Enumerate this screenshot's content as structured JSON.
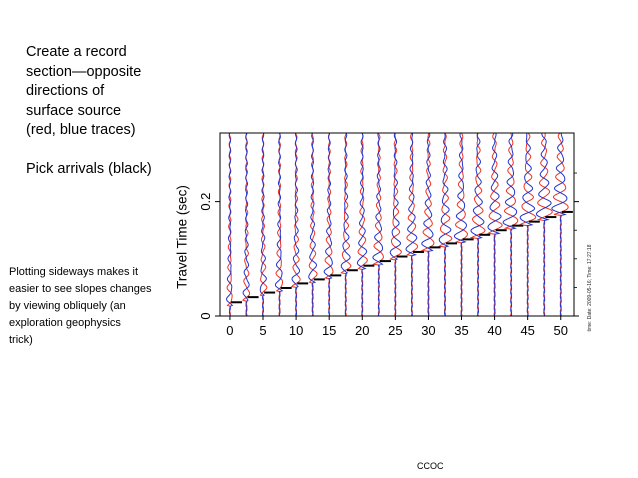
{
  "slide": {
    "title": "Create a record\nsection—opposite\ndirections of\nsurface source\n(red, blue traces)\n\nPick arrivals (black)",
    "side_note": "Plotting sideways makes it\neasier to see slopes changes\nby viewing obliquely (an\nexploration geophysics\ntrick)",
    "footer": "CCOC",
    "stamp": "time:  Date: 2009-05-16;  Time: 17:27:18"
  },
  "colors": {
    "red_trace": "#ee3322",
    "blue_trace": "#2233cc",
    "pick": "#000000",
    "axis": "#000000"
  },
  "chart_data": {
    "type": "line",
    "title": "",
    "xlabel": "",
    "ylabel": "Travel Time (sec)",
    "xlim": [
      -1.5,
      52
    ],
    "ylim": [
      0,
      0.32
    ],
    "x_ticks": [
      0,
      5,
      10,
      15,
      20,
      25,
      30,
      35,
      40,
      45,
      50
    ],
    "y_ticks": [
      {
        "value": 0,
        "label": "0"
      },
      {
        "value": 0.2,
        "label": "0.2"
      }
    ],
    "y_minor_ticks": [
      0.05,
      0.1,
      0.15,
      0.25
    ],
    "grid": false,
    "legend": "none",
    "series": [
      {
        "color_key": "red_trace",
        "trace_offsets": [
          0,
          2.5,
          5,
          7.5,
          10,
          12.5,
          15,
          17.5,
          20,
          22.5,
          25,
          27.5,
          30,
          32.5,
          35,
          37.5,
          40,
          42.5,
          45,
          47.5,
          50
        ]
      },
      {
        "color_key": "blue_trace",
        "trace_offsets": [
          0,
          2.5,
          5,
          7.5,
          10,
          12.5,
          15,
          17.5,
          20,
          22.5,
          25,
          27.5,
          30,
          32.5,
          35,
          37.5,
          40,
          42.5,
          45,
          47.5,
          50
        ]
      }
    ],
    "picks": {
      "x": [
        1,
        3.5,
        6,
        8.5,
        11,
        13.5,
        16,
        18.5,
        21,
        23.5,
        26,
        28.5,
        31,
        33.5,
        36,
        38.5,
        41,
        43.5,
        46,
        48.5,
        51
      ],
      "y": [
        0.024,
        0.033,
        0.041,
        0.049,
        0.057,
        0.064,
        0.071,
        0.08,
        0.088,
        0.096,
        0.104,
        0.112,
        0.12,
        0.127,
        0.134,
        0.142,
        0.15,
        0.158,
        0.165,
        0.173,
        0.182
      ]
    }
  }
}
